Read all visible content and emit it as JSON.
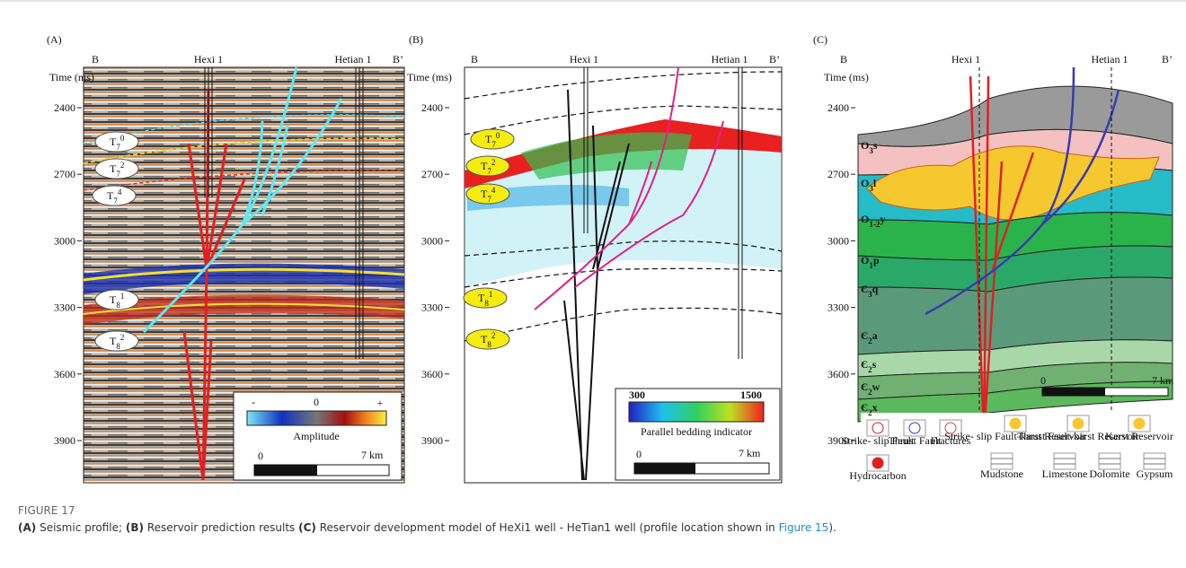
{
  "panels": [
    {
      "label": "(A)",
      "top_labels": [
        "B",
        "Hexi 1",
        "Hetian 1",
        "B’"
      ],
      "axis_title": "Time (ms)",
      "ticks": [
        2400,
        2700,
        3000,
        3300,
        3600,
        3900
      ],
      "horizons": [
        {
          "base": "T",
          "sub": "7",
          "sup": "0"
        },
        {
          "base": "T",
          "sub": "7",
          "sup": "2"
        },
        {
          "base": "T",
          "sub": "7",
          "sup": "4"
        },
        {
          "base": "T",
          "sub": "8",
          "sup": "1"
        },
        {
          "base": "T",
          "sub": "8",
          "sup": "2"
        }
      ],
      "legend": {
        "minus": "-",
        "zero": "0",
        "plus": "+",
        "title": "Amplitude",
        "scale_start": "0",
        "scale_end": "7 km"
      }
    },
    {
      "label": "(B)",
      "top_labels": [
        "B",
        "Hexi 1",
        "Hetian 1",
        "B’"
      ],
      "axis_title": "Time (ms)",
      "ticks": [
        2400,
        2700,
        3000,
        3300,
        3600,
        3900
      ],
      "horizons": [
        {
          "base": "T",
          "sub": "7",
          "sup": "0"
        },
        {
          "base": "T",
          "sub": "7",
          "sup": "2"
        },
        {
          "base": "T",
          "sub": "7",
          "sup": "4"
        },
        {
          "base": "T",
          "sub": "8",
          "sup": "1"
        },
        {
          "base": "T",
          "sub": "8",
          "sup": "2"
        }
      ],
      "legend": {
        "min": "300",
        "max": "1500",
        "title": "Parallel bedding indicator",
        "scale_start": "0",
        "scale_end": "7 km"
      }
    },
    {
      "label": "(C)",
      "top_labels": [
        "B",
        "Hexi 1",
        "Hetian 1",
        "B’"
      ],
      "axis_title": "Time (ms)",
      "ticks": [
        2400,
        2700,
        3000,
        3300,
        3600,
        3900
      ],
      "formations": [
        {
          "main": "O",
          "sub": "3",
          "suffix": "s"
        },
        {
          "main": "O",
          "sub": "3",
          "suffix": "l"
        },
        {
          "main": "O",
          "sub": "1-2",
          "suffix": "y"
        },
        {
          "main": "O",
          "sub": "1",
          "suffix": "p"
        },
        {
          "main": "Є",
          "sub": "3",
          "suffix": "q"
        },
        {
          "main": "Є",
          "sub": "2",
          "suffix": "a"
        },
        {
          "main": "Є",
          "sub": "2",
          "suffix": "s"
        },
        {
          "main": "Є",
          "sub": "2",
          "suffix": "w"
        },
        {
          "main": "Є",
          "sub": "2",
          "suffix": "x"
        }
      ],
      "scale_start": "0",
      "scale_end": "7 km",
      "legend": [
        "Strike- slip Fault",
        "Thrust Fault",
        "Fractures",
        "Strike- slip Fault-karst Reservoir",
        "Thrust Fault-karst Reservoir",
        "Karst Reservoir",
        "Hydrocarbon",
        "Mudstone",
        "Limestone",
        "Dolomite",
        "Gypsum"
      ]
    }
  ],
  "caption": {
    "label": "FIGURE 17",
    "segments": [
      "(A)",
      " Seismic profile; ",
      "(B)",
      " Reservoir prediction results ",
      "(C)",
      " Reservoir development model of HeXi1 well - HeTian1 well (profile location shown in ",
      "Figure 15",
      ")."
    ]
  }
}
